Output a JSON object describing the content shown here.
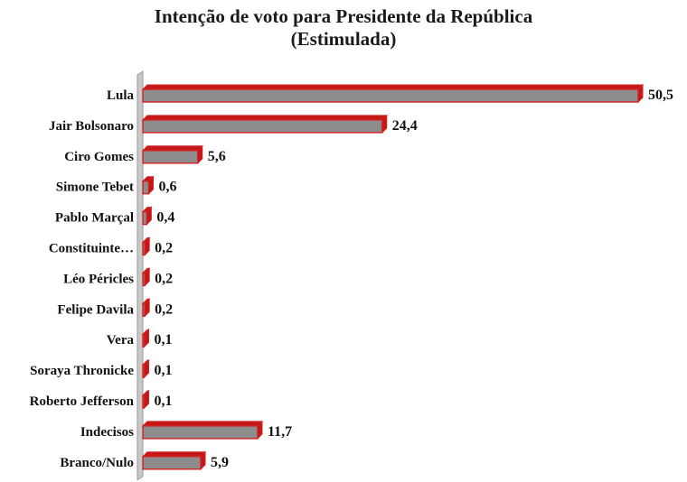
{
  "chart_data": {
    "type": "bar",
    "orientation": "horizontal",
    "title_line1": "Intenção de voto para Presidente da República",
    "title_line2": "(Estimulada)",
    "categories": [
      "Lula",
      "Jair Bolsonaro",
      "Ciro Gomes",
      "Simone Tebet",
      "Pablo Marçal",
      "Constituinte…",
      "Léo Péricles",
      "Felipe Davila",
      "Vera",
      "Soraya Thronicke",
      "Roberto Jefferson",
      "Indecisos",
      "Branco/Nulo"
    ],
    "values": [
      50.5,
      24.4,
      5.6,
      0.6,
      0.4,
      0.2,
      0.2,
      0.2,
      0.1,
      0.1,
      0.1,
      11.7,
      5.9
    ],
    "value_labels": [
      "50,5",
      "24,4",
      "5,6",
      "0,6",
      "0,4",
      "0,2",
      "0,2",
      "0,2",
      "0,1",
      "0,1",
      "0,1",
      "11,7",
      "5,9"
    ],
    "xlim": [
      0,
      50.5
    ],
    "grid": false,
    "legend": "none",
    "style": "3d",
    "colors": {
      "bar_fill": "#8c8c8c",
      "bar_border": "#d42020",
      "bar_side": "#c41818",
      "axis_wall": "#c8c8c8"
    }
  }
}
